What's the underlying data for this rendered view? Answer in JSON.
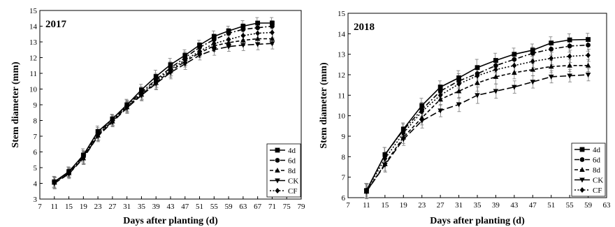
{
  "chart_data": [
    {
      "type": "line",
      "title": "2017",
      "xlabel": "Days after planting (d)",
      "ylabel": "Stem diameter (mm)",
      "xlim": [
        7,
        79
      ],
      "ylim": [
        3,
        15
      ],
      "xticks": [
        7,
        11,
        15,
        19,
        23,
        27,
        31,
        35,
        39,
        43,
        47,
        51,
        55,
        59,
        63,
        67,
        71,
        75,
        79
      ],
      "yticks": [
        3,
        4,
        5,
        6,
        7,
        8,
        9,
        10,
        11,
        12,
        13,
        14,
        15
      ],
      "x": [
        11,
        15,
        19,
        23,
        27,
        31,
        35,
        39,
        43,
        47,
        51,
        55,
        59,
        63,
        67,
        71
      ],
      "legend_position": "bottom-right",
      "series": [
        {
          "name": "4d",
          "marker": "square",
          "dash": "solid",
          "values": [
            4.1,
            4.75,
            5.8,
            7.3,
            8.1,
            9.0,
            9.95,
            10.8,
            11.55,
            12.15,
            12.8,
            13.35,
            13.7,
            14.0,
            14.2,
            14.2
          ]
        },
        {
          "name": "6d",
          "marker": "circle",
          "dash": "dashdot",
          "values": [
            4.1,
            4.7,
            5.7,
            7.2,
            8.05,
            8.95,
            9.8,
            10.6,
            11.35,
            12.0,
            12.65,
            13.15,
            13.55,
            13.8,
            13.9,
            14.0
          ]
        },
        {
          "name": "8d",
          "marker": "triangle-up",
          "dash": "dash",
          "values": [
            4.05,
            4.65,
            5.6,
            7.05,
            7.95,
            8.85,
            9.65,
            10.4,
            11.15,
            11.75,
            12.3,
            12.75,
            12.95,
            13.1,
            13.2,
            13.2
          ]
        },
        {
          "name": "CK",
          "marker": "triangle-down",
          "dash": "longdash",
          "values": [
            4.0,
            4.6,
            5.6,
            7.0,
            7.9,
            8.8,
            9.6,
            10.35,
            11.05,
            11.6,
            12.15,
            12.5,
            12.7,
            12.8,
            12.85,
            12.9
          ]
        },
        {
          "name": "CF",
          "marker": "diamond",
          "dash": "dot",
          "values": [
            4.05,
            4.7,
            5.65,
            7.1,
            8.0,
            8.9,
            9.7,
            10.5,
            11.25,
            11.85,
            12.4,
            12.9,
            13.15,
            13.4,
            13.55,
            13.6
          ]
        }
      ],
      "error": [
        0.35,
        0.3,
        0.4,
        0.35,
        0.3,
        0.35,
        0.35,
        0.4,
        0.4,
        0.35,
        0.3,
        0.35,
        0.3,
        0.35,
        0.35,
        0.35
      ]
    },
    {
      "type": "line",
      "title": "2018",
      "xlabel": "Days after planting (d)",
      "ylabel": "Stem diameter (mm)",
      "xlim": [
        7,
        63
      ],
      "ylim": [
        6,
        15
      ],
      "xticks": [
        7,
        11,
        15,
        19,
        23,
        27,
        31,
        35,
        39,
        43,
        47,
        51,
        55,
        59,
        63
      ],
      "yticks": [
        6,
        7,
        8,
        9,
        10,
        11,
        12,
        13,
        14,
        15
      ],
      "x": [
        11,
        15,
        19,
        23,
        27,
        31,
        35,
        39,
        43,
        47,
        51,
        55,
        59
      ],
      "legend_position": "bottom-right",
      "series": [
        {
          "name": "4d",
          "marker": "square",
          "dash": "solid",
          "values": [
            6.35,
            8.1,
            9.35,
            10.5,
            11.4,
            11.85,
            12.35,
            12.7,
            13.0,
            13.2,
            13.55,
            13.7,
            13.72
          ]
        },
        {
          "name": "6d",
          "marker": "circle",
          "dash": "dashdot",
          "values": [
            6.35,
            8.1,
            9.3,
            10.3,
            11.2,
            11.7,
            12.05,
            12.45,
            12.75,
            13.05,
            13.25,
            13.4,
            13.45
          ]
        },
        {
          "name": "8d",
          "marker": "triangle-up",
          "dash": "dash",
          "values": [
            6.3,
            7.65,
            8.95,
            9.9,
            10.8,
            11.2,
            11.6,
            11.9,
            12.1,
            12.25,
            12.4,
            12.45,
            12.45
          ]
        },
        {
          "name": "CK",
          "marker": "triangle-down",
          "dash": "longdash",
          "values": [
            6.3,
            7.6,
            8.85,
            9.75,
            10.25,
            10.55,
            11.0,
            11.2,
            11.4,
            11.65,
            11.9,
            11.95,
            12.0
          ]
        },
        {
          "name": "CF",
          "marker": "diamond",
          "dash": "dot",
          "values": [
            6.35,
            7.9,
            9.15,
            10.2,
            11.0,
            11.55,
            11.95,
            12.25,
            12.45,
            12.65,
            12.8,
            12.9,
            12.95
          ]
        }
      ],
      "error": [
        0.35,
        0.35,
        0.3,
        0.35,
        0.3,
        0.35,
        0.4,
        0.35,
        0.3,
        0.3,
        0.3,
        0.3,
        0.3
      ]
    }
  ]
}
